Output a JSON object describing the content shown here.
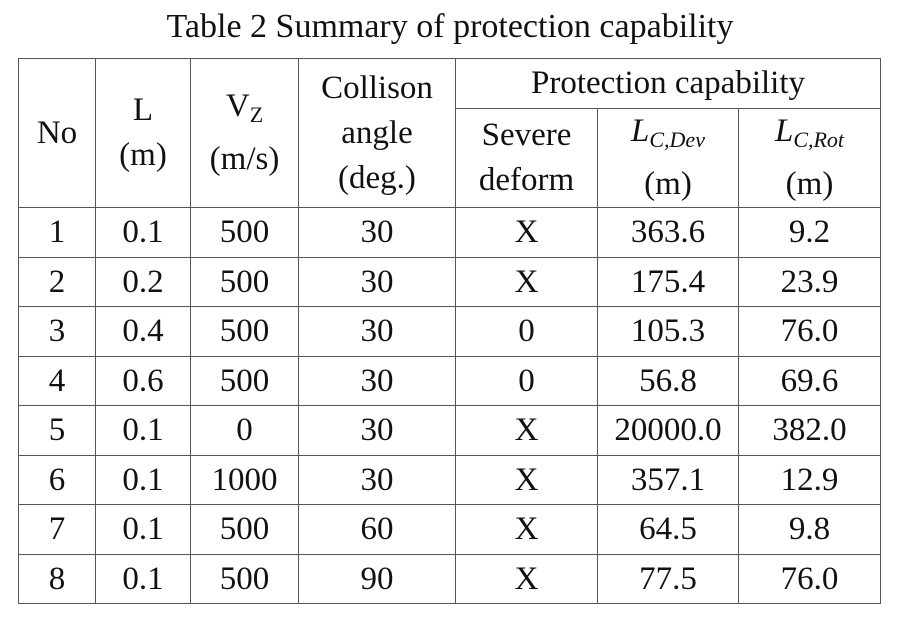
{
  "title": "Table 2 Summary of protection capability",
  "header": {
    "no": "No",
    "l": {
      "symbol": "L",
      "unit": "(m)"
    },
    "vz": {
      "symbol": "V",
      "subscript": "Z",
      "unit": "(m/s)"
    },
    "angle": [
      "Collison",
      "angle",
      "(deg.)"
    ],
    "group": "Protection capability",
    "severe": [
      "Severe",
      "deform"
    ],
    "lc_dev": {
      "symbol": "L",
      "subscript": "C,Dev",
      "unit": "(m)"
    },
    "lc_rot": {
      "symbol": "L",
      "subscript": "C,Rot",
      "unit": "(m)"
    }
  },
  "rows": [
    [
      "1",
      "0.1",
      "500",
      "30",
      "X",
      "363.6",
      "9.2"
    ],
    [
      "2",
      "0.2",
      "500",
      "30",
      "X",
      "175.4",
      "23.9"
    ],
    [
      "3",
      "0.4",
      "500",
      "30",
      "0",
      "105.3",
      "76.0"
    ],
    [
      "4",
      "0.6",
      "500",
      "30",
      "0",
      "56.8",
      "69.6"
    ],
    [
      "5",
      "0.1",
      "0",
      "30",
      "X",
      "20000.0",
      "382.0"
    ],
    [
      "6",
      "0.1",
      "1000",
      "30",
      "X",
      "357.1",
      "12.9"
    ],
    [
      "7",
      "0.1",
      "500",
      "60",
      "X",
      "64.5",
      "9.8"
    ],
    [
      "8",
      "0.1",
      "500",
      "90",
      "X",
      "77.5",
      "76.0"
    ]
  ]
}
